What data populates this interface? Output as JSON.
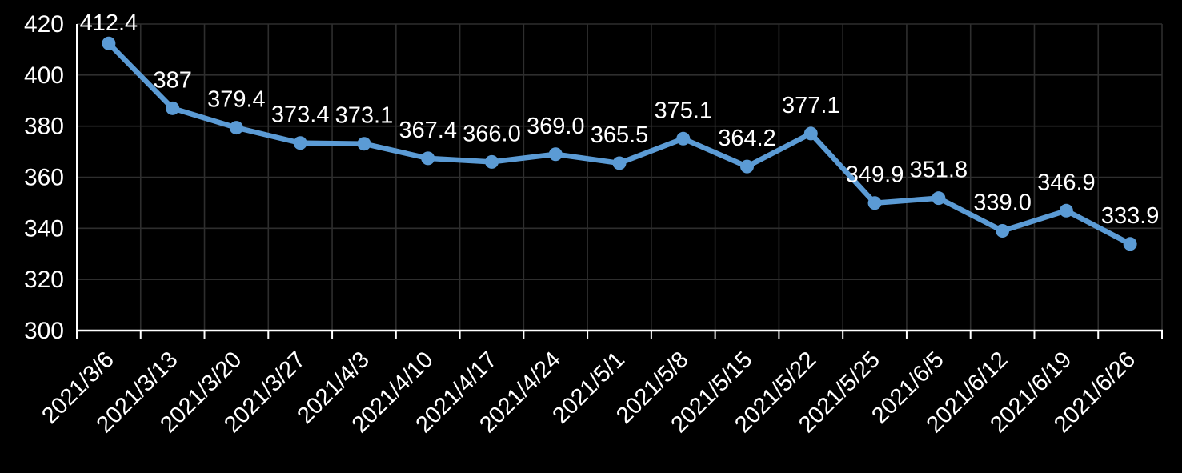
{
  "chart_data": {
    "type": "line",
    "title": "",
    "xlabel": "",
    "ylabel": "",
    "categories": [
      "2021/3/6",
      "2021/3/13",
      "2021/3/20",
      "2021/3/27",
      "2021/4/3",
      "2021/4/10",
      "2021/4/17",
      "2021/4/24",
      "2021/5/1",
      "2021/5/8",
      "2021/5/15",
      "2021/5/22",
      "2021/5/25",
      "2021/6/5",
      "2021/6/12",
      "2021/6/19",
      "2021/6/26"
    ],
    "values": [
      412.4,
      387,
      379.4,
      373.4,
      373.1,
      367.4,
      366.0,
      369.0,
      365.5,
      375.1,
      364.2,
      377.1,
      349.9,
      351.8,
      339.0,
      346.9,
      333.9
    ],
    "point_labels": [
      "412.4",
      "387",
      "379.4",
      "373.4",
      "373.1",
      "367.4",
      "366.0",
      "369.0",
      "365.5",
      "375.1",
      "364.2",
      "377.1",
      "349.9",
      "351.8",
      "339.0",
      "346.9",
      "333.9"
    ],
    "ylim": [
      300,
      420
    ],
    "y_ticks": [
      420,
      400,
      380,
      360,
      340,
      320,
      300
    ],
    "grid": true,
    "legend_position": "none",
    "x_label_rotation_deg": 45,
    "colors": {
      "background": "#000000",
      "line": "#5B9BD5",
      "marker": "#5B9BD5",
      "gridline": "#2E2E2E",
      "axis": "#FFFFFF",
      "text": "#FFFFFF"
    }
  }
}
